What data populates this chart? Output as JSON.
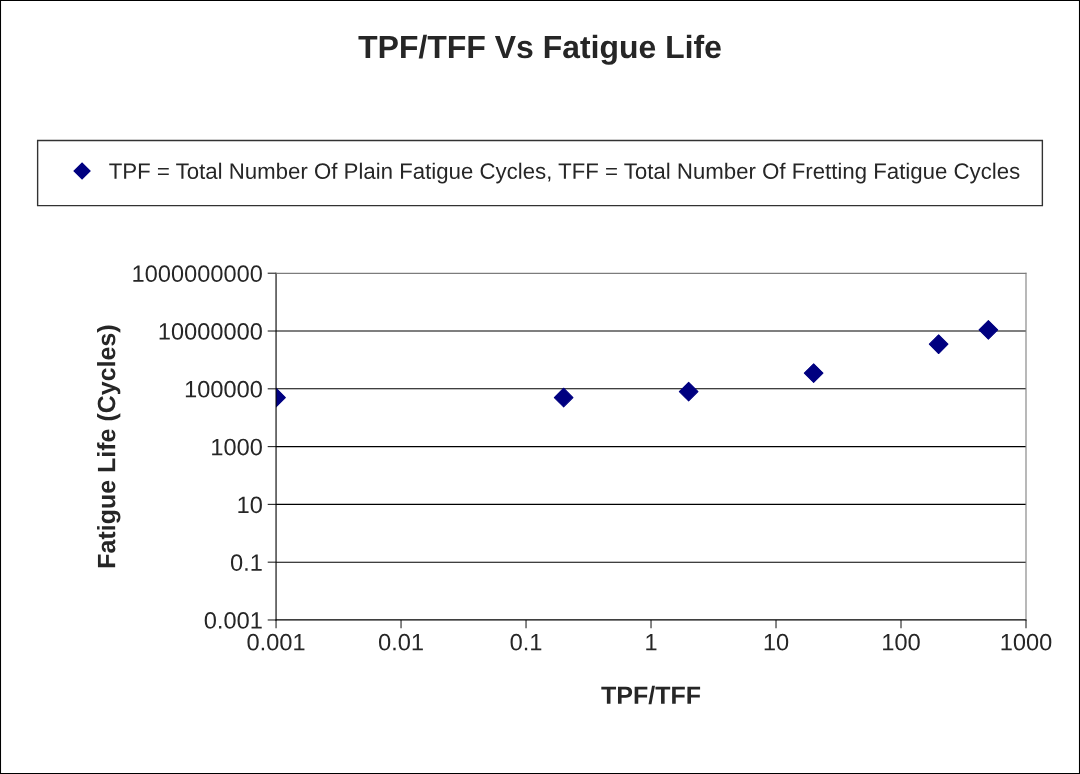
{
  "chart_data": {
    "type": "scatter",
    "title": "TPF/TFF Vs Fatigue Life",
    "xlabel": "TPF/TFF",
    "ylabel": "Fatigue Life (Cycles)",
    "log": "xy",
    "grid": "y",
    "legend": "top",
    "marker": "diamond",
    "xlim": [
      0.001,
      1000
    ],
    "xticks": [
      0.001,
      0.01,
      0.1,
      1,
      10,
      100,
      1000
    ],
    "ylim": [
      0.001,
      1000000000
    ],
    "yticks": [
      0.001,
      0.1,
      10,
      1000,
      100000,
      10000000,
      1000000000
    ],
    "series": [
      {
        "name": "TPF = Total Number Of Plain Fatigue Cycles, TFF = Total Number Of Fretting Fatigue Cycles",
        "color": "#000080",
        "x": [
          0.001,
          0.2,
          2,
          20,
          200,
          500
        ],
        "values": [
          50000,
          50000,
          80000,
          350000,
          3500000,
          11000000
        ]
      }
    ]
  }
}
